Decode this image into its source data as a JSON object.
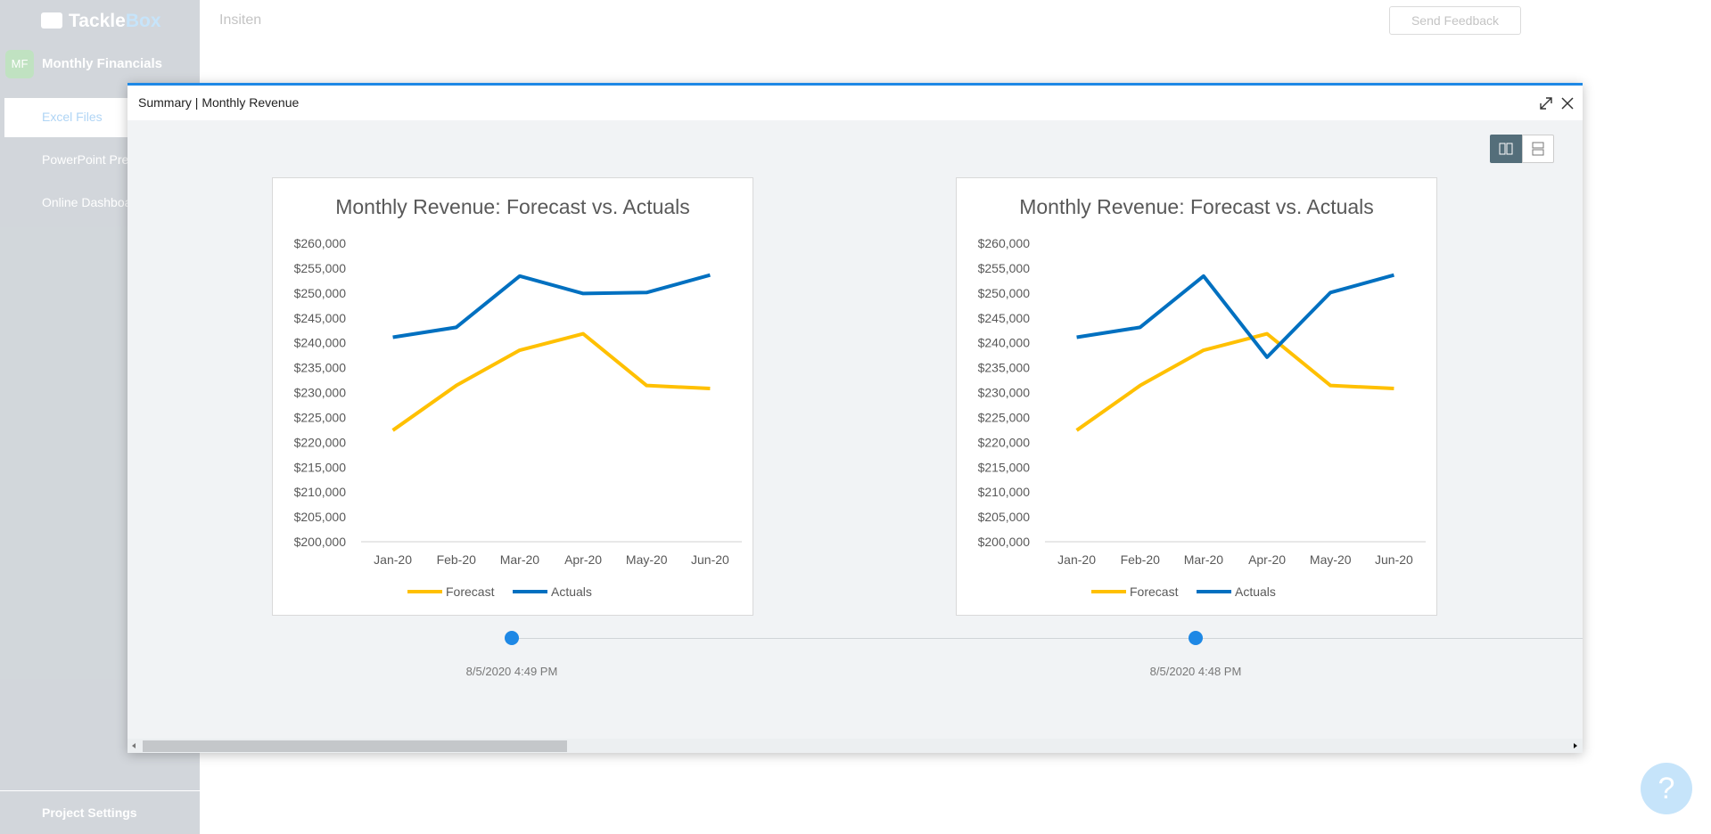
{
  "app": {
    "logo": [
      "Tackle",
      "Box"
    ],
    "project_badge": "MF",
    "project": "Monthly Financials",
    "nav": [
      "Excel Files",
      "PowerPoint Presentations",
      "Online Dashboards"
    ],
    "settings": "Project Settings",
    "workspace": "Insiten",
    "feedback": "Send Feedback",
    "help": "?"
  },
  "modal": {
    "title": "Summary | Monthly Revenue",
    "versions": [
      "8/5/2020 4:49 PM",
      "8/5/2020 4:48 PM"
    ]
  },
  "chart_data": [
    {
      "type": "line",
      "title": "Monthly Revenue: Forecast vs. Actuals",
      "categories": [
        "Jan-20",
        "Feb-20",
        "Mar-20",
        "Apr-20",
        "May-20",
        "Jun-20"
      ],
      "series": [
        {
          "name": "Forecast",
          "color": "#ffc000",
          "values": [
            222400,
            231400,
            238500,
            241800,
            231400,
            230800
          ]
        },
        {
          "name": "Actuals",
          "color": "#0070c0",
          "values": [
            241100,
            243100,
            253400,
            249900,
            250100,
            253600
          ]
        }
      ],
      "ylim": [
        200000,
        260000
      ],
      "yticks": [
        {
          "value": 200000,
          "label": "$200,000"
        },
        {
          "value": 205000,
          "label": "$205,000"
        },
        {
          "value": 210000,
          "label": "$210,000"
        },
        {
          "value": 215000,
          "label": "$215,000"
        },
        {
          "value": 220000,
          "label": "$220,000"
        },
        {
          "value": 225000,
          "label": "$225,000"
        },
        {
          "value": 230000,
          "label": "$230,000"
        },
        {
          "value": 235000,
          "label": "$235,000"
        },
        {
          "value": 240000,
          "label": "$240,000"
        },
        {
          "value": 245000,
          "label": "$245,000"
        },
        {
          "value": 250000,
          "label": "$250,000"
        },
        {
          "value": 255000,
          "label": "$255,000"
        },
        {
          "value": 260000,
          "label": "$260,000"
        }
      ],
      "legend": "bottom"
    },
    {
      "type": "line",
      "title": "Monthly Revenue: Forecast vs. Actuals",
      "categories": [
        "Jan-20",
        "Feb-20",
        "Mar-20",
        "Apr-20",
        "May-20",
        "Jun-20"
      ],
      "series": [
        {
          "name": "Forecast",
          "color": "#ffc000",
          "values": [
            222400,
            231400,
            238500,
            241800,
            231400,
            230800
          ]
        },
        {
          "name": "Actuals",
          "color": "#0070c0",
          "values": [
            241100,
            243100,
            253400,
            237100,
            250100,
            253600
          ]
        }
      ],
      "ylim": [
        200000,
        260000
      ],
      "yticks": [
        {
          "value": 200000,
          "label": "$200,000"
        },
        {
          "value": 205000,
          "label": "$205,000"
        },
        {
          "value": 210000,
          "label": "$210,000"
        },
        {
          "value": 215000,
          "label": "$215,000"
        },
        {
          "value": 220000,
          "label": "$220,000"
        },
        {
          "value": 225000,
          "label": "$225,000"
        },
        {
          "value": 230000,
          "label": "$230,000"
        },
        {
          "value": 235000,
          "label": "$235,000"
        },
        {
          "value": 240000,
          "label": "$240,000"
        },
        {
          "value": 245000,
          "label": "$245,000"
        },
        {
          "value": 250000,
          "label": "$250,000"
        },
        {
          "value": 255000,
          "label": "$255,000"
        },
        {
          "value": 260000,
          "label": "$260,000"
        }
      ],
      "legend": "bottom"
    }
  ]
}
